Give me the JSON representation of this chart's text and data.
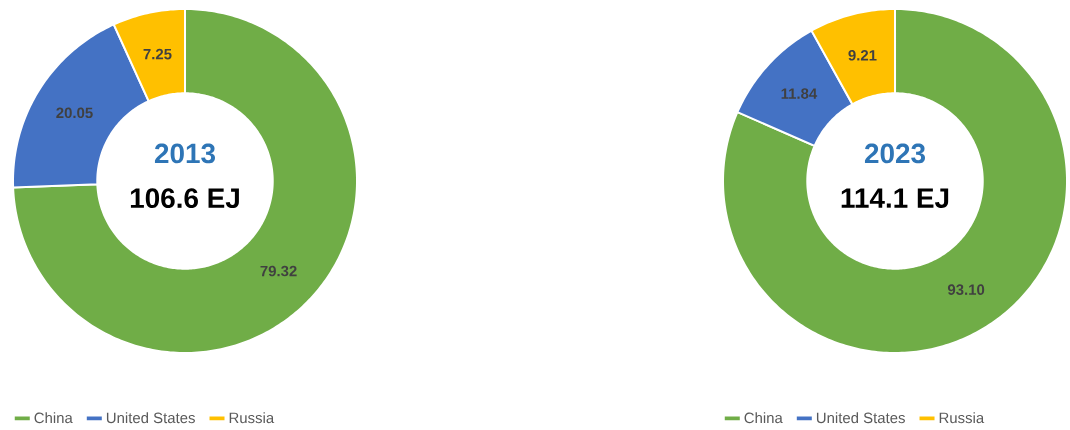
{
  "chart_data": [
    {
      "type": "donut",
      "title": "2013",
      "subtitle": "106.6 EJ",
      "categories": [
        "China",
        "United States",
        "Russia"
      ],
      "values": [
        79.32,
        20.05,
        7.25
      ],
      "value_labels": [
        "79.32",
        "20.05",
        "7.25"
      ],
      "colors": [
        "#70ad47",
        "#4472c4",
        "#ffc000"
      ],
      "legend": "bottom"
    },
    {
      "type": "donut",
      "title": "2023",
      "subtitle": "114.1 EJ",
      "categories": [
        "China",
        "United States",
        "Russia"
      ],
      "values": [
        93.1,
        11.84,
        9.21
      ],
      "value_labels": [
        "93.10",
        "11.84",
        "9.21"
      ],
      "colors": [
        "#70ad47",
        "#4472c4",
        "#ffc000"
      ],
      "legend": "bottom"
    }
  ]
}
